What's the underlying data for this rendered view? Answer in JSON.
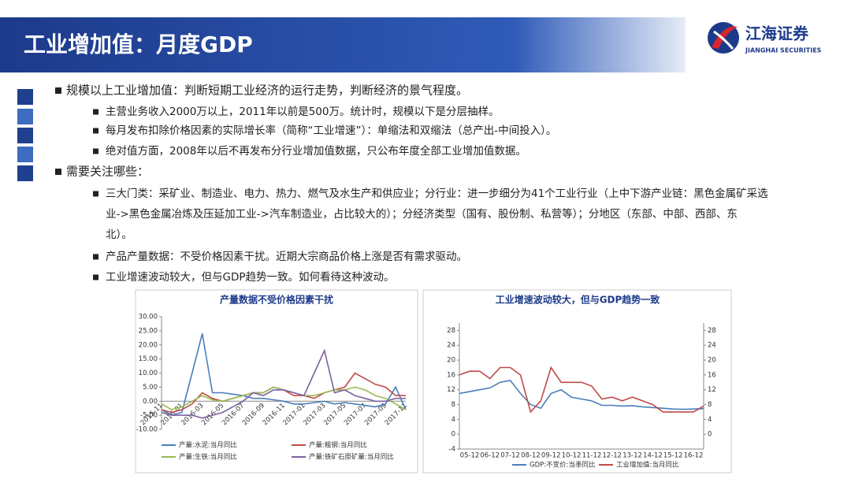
{
  "header": {
    "title": "工业增加值：月度GDP",
    "logo": {
      "name": "江海证券",
      "sub": "JIANGHAI SECURITIES"
    }
  },
  "bullets": [
    {
      "text": "规模以上工业增加值：判断短期工业经济的运行走势，判断经济的景气程度。",
      "children": [
        {
          "lines": [
            "主营业务收入2000万以上，2011年以前是500万。统计时，规模以下是分层抽样。"
          ]
        },
        {
          "lines": [
            "每月发布扣除价格因素的实际增长率（简称“工业增速”）：单缩法和双缩法（总产出-中间投入）。"
          ]
        },
        {
          "lines": [
            "绝对值方面，2008年以后不再发布分行业增加值数据，只公布年度全部工业增加值数据。"
          ]
        }
      ]
    },
    {
      "text": "需要关注哪些：",
      "children": [
        {
          "lines": [
            "三大门类：采矿业、制造业、电力、热力、燃气及水生产和供应业；分行业：进一步细分为41个工业行业（上中下游产业链：黑色金属矿采选",
            "业->黑色金属冶炼及压延加工业->汽车制造业，占比较大的）；分经济类型（国有、股份制、私营等）；分地区（东部、中部、西部、东",
            "北）。"
          ]
        },
        {
          "lines": [
            "产品产量数据：不受价格因素干扰。近期大宗商品价格上涨是否有需求驱动。"
          ]
        },
        {
          "lines": [
            "工业增速波动较大，但与GDP趋势一致。如何看待这种波动。"
          ]
        }
      ]
    }
  ],
  "chart_data": [
    {
      "type": "line",
      "title": "产量数据不受价格因素干扰",
      "categories": [
        "2015-11",
        null,
        "2016-01",
        null,
        "2016-03",
        null,
        "2016-05",
        null,
        "2016-07",
        null,
        "2016-09",
        null,
        "2016-11",
        null,
        "2017-01",
        null,
        "2017-03",
        null,
        "2017-05",
        null,
        "2017-07",
        null,
        "2017-09",
        null,
        "2017-11"
      ],
      "ylim": [
        -10,
        30
      ],
      "yticks": [
        {
          "value": 30,
          "label": "30.00"
        },
        {
          "value": 25,
          "label": "25.00"
        },
        {
          "value": 20,
          "label": "20.00"
        },
        {
          "value": 15,
          "label": "15.00"
        },
        {
          "value": 10,
          "label": "10.00"
        },
        {
          "value": 5,
          "label": "5.00"
        },
        {
          "value": 0,
          "label": "0.00"
        },
        {
          "value": -5,
          "label": "-5.00"
        },
        {
          "value": -10,
          "label": "-10.00"
        }
      ],
      "series": [
        {
          "name": "产量:水泥:当月同比",
          "color": "#4a7ebb",
          "values": [
            -3,
            -5,
            -4,
            10,
            24,
            3,
            3,
            2.5,
            2,
            1,
            1,
            0.5,
            0,
            -1,
            -1,
            -0.5,
            0,
            -1,
            -0.5,
            -1,
            -1.5,
            -2,
            -1,
            5,
            -3
          ]
        },
        {
          "name": "产量:粗钢:当月同比",
          "color": "#be4b48",
          "values": [
            -3,
            -4,
            -3,
            -1,
            3,
            1,
            0,
            1,
            2,
            3,
            3,
            5,
            4,
            2,
            2,
            1,
            3,
            4,
            5,
            10,
            8,
            6,
            5,
            2,
            2
          ]
        },
        {
          "name": "产量:生铁:当月同比",
          "color": "#98b954",
          "values": [
            -1,
            -3,
            -2,
            0,
            2,
            0.5,
            0,
            1,
            2,
            3,
            3,
            5,
            4,
            3,
            2,
            2,
            3,
            4,
            4,
            5,
            4,
            2,
            1,
            -1,
            -3
          ]
        },
        {
          "name": "产量:铁矿石原矿量:当月同比",
          "color": "#7d60a0",
          "values": [
            -4,
            -5,
            -5,
            -5,
            -6,
            -5,
            -4,
            -2,
            0,
            3,
            2,
            4,
            4,
            3,
            2,
            10,
            18,
            3,
            4,
            2,
            1,
            0,
            0,
            1,
            1
          ]
        }
      ]
    },
    {
      "type": "line",
      "title": "工业增速波动较大，但与GDP趋势一致",
      "categories": [
        null,
        "05-12",
        null,
        "06-12",
        null,
        "07-12",
        null,
        "08-12",
        null,
        "09-12",
        null,
        "10-12",
        null,
        "11-12",
        null,
        "12-12",
        null,
        "13-12",
        null,
        "14-12",
        null,
        "15-12",
        null,
        "16-12",
        null
      ],
      "ylim": [
        -4,
        30
      ],
      "yticks": [
        28,
        24,
        20,
        16,
        12,
        8,
        4,
        0,
        -4
      ],
      "y2lim": [
        -4,
        30
      ],
      "y2ticks": [
        28,
        24,
        20,
        16,
        12,
        8,
        4,
        0
      ],
      "series": [
        {
          "name": "GDP:不变价:当季同比",
          "color": "#4a7ebb",
          "axis": "y2",
          "values": [
            11,
            11.5,
            12,
            12.5,
            14,
            14.5,
            11,
            8,
            7,
            11,
            12,
            10,
            9.5,
            9,
            7.8,
            7.8,
            7.6,
            7.7,
            7.4,
            7.2,
            7,
            6.8,
            6.7,
            6.8,
            6.9
          ]
        },
        {
          "name": "工业增加值:当月同比",
          "color": "#be4b48",
          "values": [
            16,
            17,
            17,
            15,
            18,
            18,
            16,
            6,
            9,
            18,
            14,
            14,
            14,
            13,
            9.5,
            10,
            9,
            10,
            9,
            8,
            6,
            6,
            6,
            6,
            7.6
          ]
        }
      ]
    }
  ]
}
